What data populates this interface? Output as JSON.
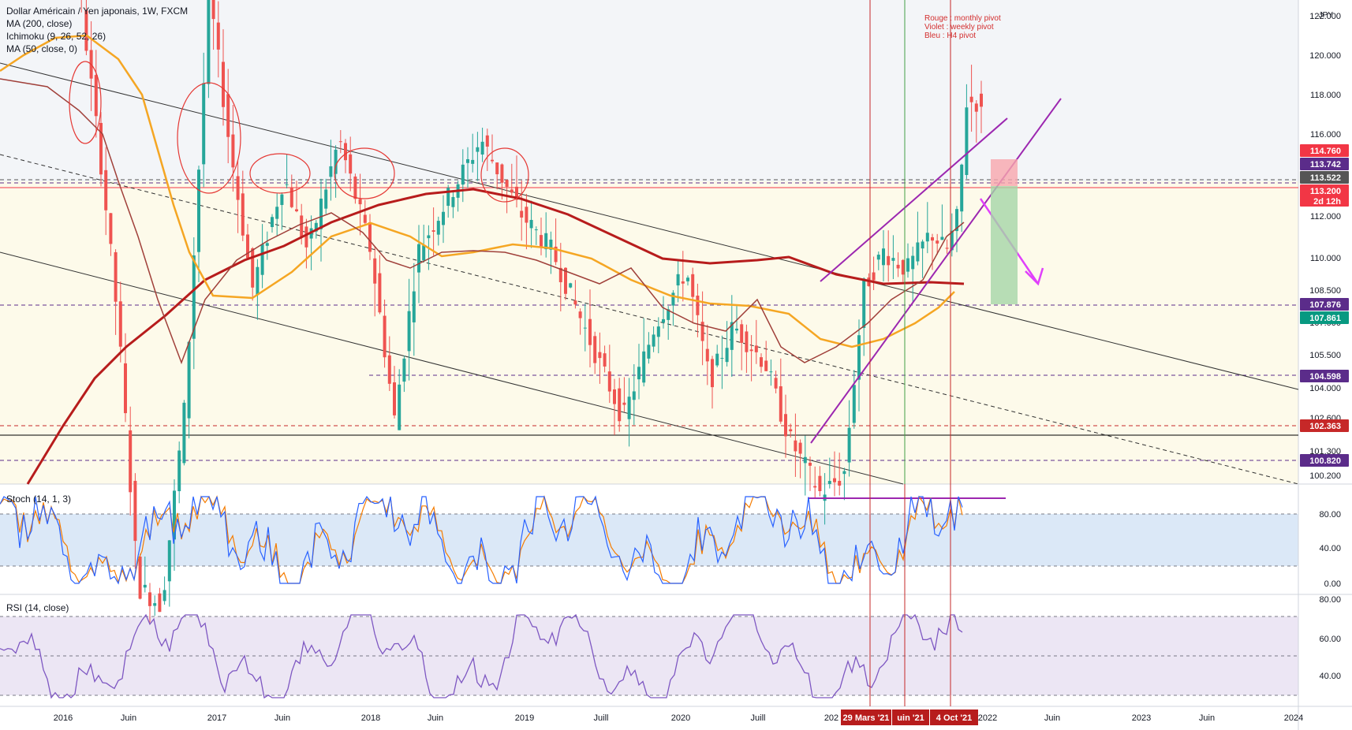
{
  "legend": {
    "symbol": "Dollar Américain / Yen japonais, 1W, FXCM",
    "ma200": "MA (200, close)",
    "ichimoku": "Ichimoku (9, 26, 52, 26)",
    "ma50": "MA (50, close, 0)"
  },
  "notes": {
    "rouge": "Rouge : monthly pivot",
    "violet": "Violet : weekly pivot",
    "bleu": "Bleu : H4 pivot"
  },
  "currency": "JPY",
  "panes": {
    "stoch": "Stoch (14, 1, 3)",
    "rsi": "RSI (14, close)"
  },
  "colors": {
    "up": "#26a69a",
    "down": "#ef5350",
    "ma200": "#b71c1c",
    "ma50": "#f5a623",
    "ichimoku": "#a0403a",
    "channel": "#9c27b0",
    "stochK": "#2962ff",
    "stochD": "#f57c00",
    "rsi": "#7e57c2",
    "pivot": "#c62828"
  },
  "chart_data": {
    "type": "candlestick",
    "price_axis": {
      "ticks": [
        "122.000",
        "120.000",
        "118.000",
        "116.000",
        "114.000",
        "112.000",
        "110.000",
        "108.500",
        "107.000",
        "105.500",
        "104.000",
        "102.600",
        "101.300",
        "100.200"
      ],
      "badges": [
        {
          "label": "114.760",
          "color": "#f23645"
        },
        {
          "label": "113.742",
          "color": "#5b2c8a"
        },
        {
          "label": "113.522",
          "color": "#555555"
        },
        {
          "label": "113.200",
          "sub": "2d 12h",
          "color": "#f23645"
        },
        {
          "label": "107.876",
          "color": "#5b2c8a"
        },
        {
          "label": "107.861",
          "color": "#089981"
        },
        {
          "label": "104.598",
          "color": "#5b2c8a"
        },
        {
          "label": "102.363",
          "color": "#c62828"
        },
        {
          "label": "100.820",
          "color": "#5b2c8a"
        }
      ]
    },
    "time_axis": [
      "2016",
      "Juin",
      "2017",
      "Juin",
      "2018",
      "Juin",
      "2019",
      "Juill",
      "2020",
      "Juill",
      "202",
      "2022",
      "Juin",
      "2023",
      "Juin",
      "2024"
    ],
    "time_badges": [
      "29 Mars '21",
      "uin '21",
      "4 Oct '21"
    ],
    "stoch_axis": [
      "80.00",
      "40.00",
      "0.00"
    ],
    "rsi_axis": [
      "80.00",
      "60.00",
      "40.00"
    ]
  }
}
